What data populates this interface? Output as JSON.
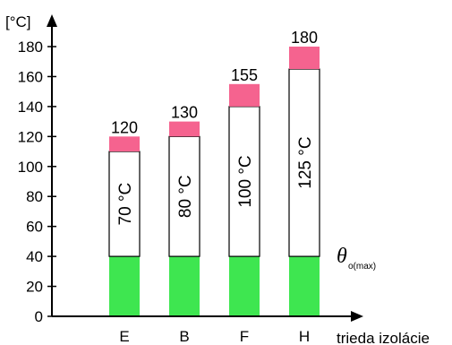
{
  "chart_data": {
    "type": "bar",
    "stacked": true,
    "categories": [
      "E",
      "B",
      "F",
      "H"
    ],
    "segments": {
      "base": 40,
      "middle_top": [
        110,
        120,
        140,
        165
      ],
      "top": [
        120,
        130,
        155,
        180
      ]
    },
    "top_labels": [
      "120",
      "130",
      "155",
      "180"
    ],
    "inside_labels": [
      "70 °C",
      "80 °C",
      "100 °C",
      "125 °C"
    ],
    "yticks": [
      0,
      20,
      40,
      60,
      80,
      100,
      120,
      140,
      160,
      180
    ],
    "ylim": [
      0,
      195
    ],
    "ylabel": "[°C]",
    "xlabel": "trieda izolácie",
    "annotation": {
      "symbol": "θ",
      "subscript": "o(max)"
    },
    "colors": {
      "base": "#3ee650",
      "middle": "#ffffff",
      "top": "#f5638f",
      "outline": "#000000"
    },
    "grid": false
  }
}
